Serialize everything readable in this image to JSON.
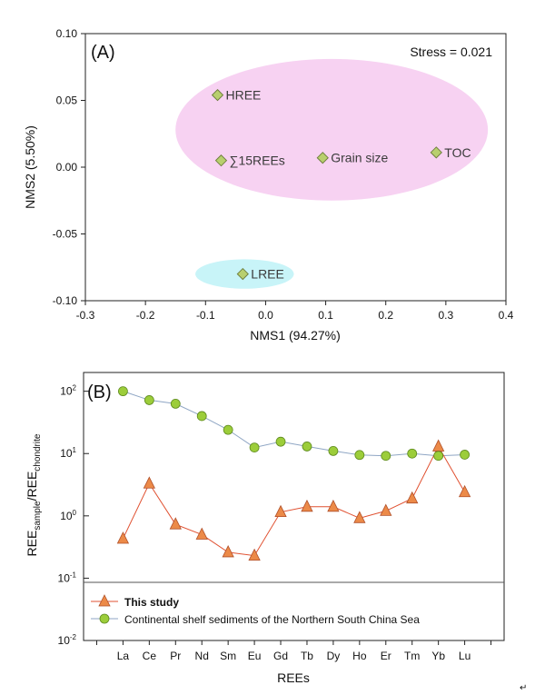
{
  "chart_data": [
    {
      "type": "scatter",
      "panel_label": "(A)",
      "annotation": "Stress = 0.021",
      "xlabel": "NMS1 (94.27%)",
      "ylabel": "NMS2 (5.50%)",
      "xlim": [
        -0.3,
        0.4
      ],
      "ylim": [
        -0.1,
        0.1
      ],
      "xticks": [
        "-0.3",
        "-0.2",
        "-0.1",
        "0.0",
        "0.1",
        "0.2",
        "0.3",
        "0.4"
      ],
      "yticks": [
        "0.10",
        "0.05",
        "0.00",
        "-0.05",
        "-0.10"
      ],
      "point_color": "#b8cf6e",
      "points": [
        {
          "label": "HREE",
          "x": -0.08,
          "y": 0.054
        },
        {
          "label": "∑15REEs",
          "x": -0.074,
          "y": 0.005
        },
        {
          "label": "Grain size",
          "x": 0.095,
          "y": 0.007
        },
        {
          "label": "TOC",
          "x": 0.284,
          "y": 0.011
        },
        {
          "label": "LREE",
          "x": -0.038,
          "y": -0.08
        }
      ],
      "groups": [
        {
          "color": "#f7d2f2",
          "cx": 0.11,
          "cy": 0.028,
          "rx": 0.26,
          "ry": 0.053
        },
        {
          "color": "#c8f4f8",
          "cx": -0.035,
          "cy": -0.08,
          "rx": 0.082,
          "ry": 0.011
        }
      ]
    },
    {
      "type": "line",
      "panel_label": "(B)",
      "xlabel": "REEs",
      "ylabel_main": "REE",
      "ylabel_sub1": "sample",
      "ylabel_sep": "/REE",
      "ylabel_sub2": "chondrite",
      "yscale": "log",
      "ylim": [
        0.01,
        200
      ],
      "yticks": [
        {
          "base": "10",
          "exp": "2",
          "value": 100
        },
        {
          "base": "10",
          "exp": "1",
          "value": 10
        },
        {
          "base": "10",
          "exp": "0",
          "value": 1
        },
        {
          "base": "10",
          "exp": "-1",
          "value": 0.1
        },
        {
          "base": "10",
          "exp": "-2",
          "value": 0.01
        }
      ],
      "categories": [
        "La",
        "Ce",
        "Pr",
        "Nd",
        "Sm",
        "Eu",
        "Gd",
        "Tb",
        "Dy",
        "Ho",
        "Er",
        "Tm",
        "Yb",
        "Lu"
      ],
      "series": [
        {
          "name": "This study",
          "marker": "triangle",
          "line_color": "#e05030",
          "fill_color": "#ec8a48",
          "values": [
            0.43,
            3.3,
            0.73,
            0.5,
            0.26,
            0.23,
            1.15,
            1.4,
            1.4,
            0.92,
            1.2,
            1.9,
            13.0,
            2.4
          ]
        },
        {
          "name": "Continental shelf sediments of the Northern South China Sea",
          "marker": "circle",
          "line_color": "#8fa6c4",
          "fill_color": "#9ccd3a",
          "values": [
            100,
            72,
            63,
            40,
            24,
            12.5,
            15.5,
            13,
            11,
            9.5,
            9.2,
            10,
            9.2,
            9.6
          ]
        }
      ]
    }
  ],
  "corner_mark": "↵"
}
